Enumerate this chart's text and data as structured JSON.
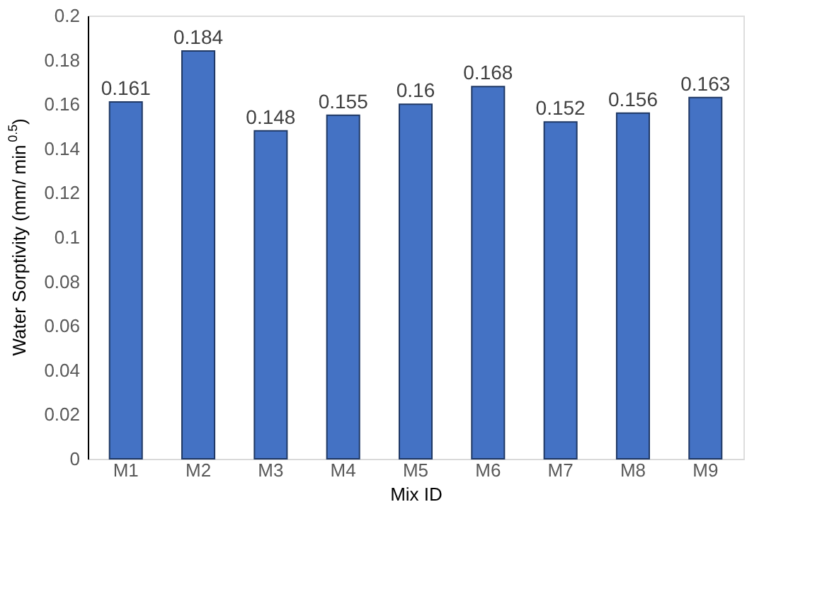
{
  "chart_data": {
    "type": "bar",
    "xlabel": "Mix ID",
    "ylabel": "Water Sorptivity (mm/ min$^{0.5}$)",
    "categories": [
      "M1",
      "M2",
      "M3",
      "M4",
      "M5",
      "M6",
      "M7",
      "M8",
      "M9"
    ],
    "values": [
      0.161,
      0.184,
      0.148,
      0.155,
      0.16,
      0.168,
      0.152,
      0.156,
      0.163
    ],
    "color": "#4472c4",
    "ylim": [
      0,
      0.2
    ],
    "yticks": [
      0,
      0.02,
      0.04,
      0.06,
      0.08,
      0.1,
      0.12,
      0.14,
      0.16,
      0.18,
      0.2
    ],
    "grid": false,
    "data_labels": true
  }
}
